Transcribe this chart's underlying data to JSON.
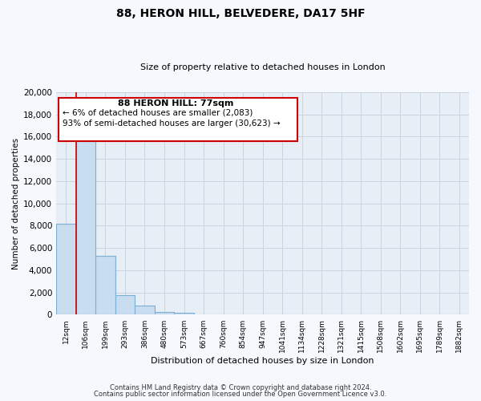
{
  "title": "88, HERON HILL, BELVEDERE, DA17 5HF",
  "subtitle": "Size of property relative to detached houses in London",
  "xlabel": "Distribution of detached houses by size in London",
  "ylabel": "Number of detached properties",
  "categories": [
    "12sqm",
    "106sqm",
    "199sqm",
    "293sqm",
    "386sqm",
    "480sqm",
    "573sqm",
    "667sqm",
    "760sqm",
    "854sqm",
    "947sqm",
    "1041sqm",
    "1134sqm",
    "1228sqm",
    "1321sqm",
    "1415sqm",
    "1508sqm",
    "1602sqm",
    "1695sqm",
    "1789sqm",
    "1882sqm"
  ],
  "values": [
    8200,
    16500,
    5300,
    1750,
    800,
    250,
    200,
    0,
    0,
    0,
    0,
    0,
    0,
    0,
    0,
    0,
    0,
    0,
    0,
    0,
    0
  ],
  "bar_color": "#c8ddf0",
  "bar_edge_color": "#7bafd4",
  "ylim": [
    0,
    20000
  ],
  "yticks": [
    0,
    2000,
    4000,
    6000,
    8000,
    10000,
    12000,
    14000,
    16000,
    18000,
    20000
  ],
  "vline_color": "#cc0000",
  "annotation_title": "88 HERON HILL: 77sqm",
  "annotation_line1": "← 6% of detached houses are smaller (2,083)",
  "annotation_line2": "93% of semi-detached houses are larger (30,623) →",
  "annotation_box_color": "#ffffff",
  "annotation_box_edge": "#cc0000",
  "footer_line1": "Contains HM Land Registry data © Crown copyright and database right 2024.",
  "footer_line2": "Contains public sector information licensed under the Open Government Licence v3.0.",
  "bg_color": "#f5f8fc",
  "plot_bg_color": "#e8eef5",
  "grid_color": "#c8d4e0"
}
